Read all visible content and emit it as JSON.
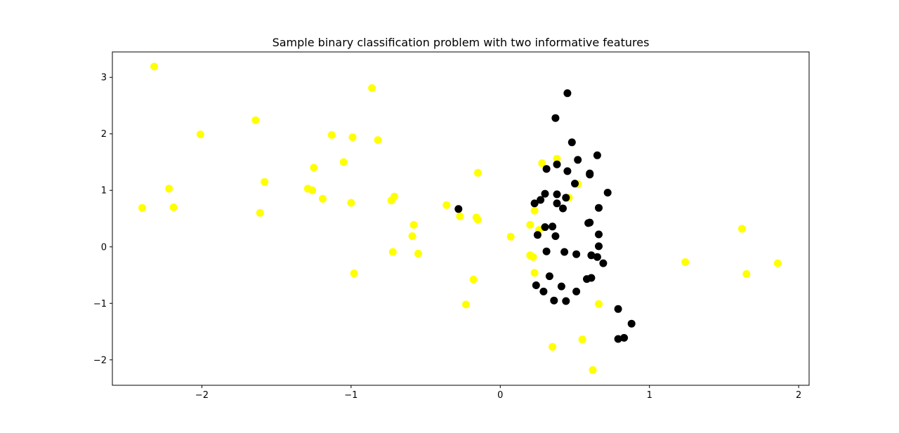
{
  "chart_data": {
    "type": "scatter",
    "title": "Sample binary classification problem with two informative features",
    "xlabel": "",
    "ylabel": "",
    "xlim": [
      -2.6,
      2.07
    ],
    "ylim": [
      -2.45,
      3.45
    ],
    "xticks": [
      -2,
      -1,
      0,
      1,
      2
    ],
    "yticks": [
      -2,
      -1,
      0,
      1,
      2,
      3
    ],
    "xtick_labels": [
      "−2",
      "−1",
      "0",
      "1",
      "2"
    ],
    "ytick_labels": [
      "−2",
      "−1",
      "0",
      "1",
      "2",
      "3"
    ],
    "grid": false,
    "legend": "none",
    "series": [
      {
        "color": "#ffff00",
        "points": [
          [
            -2.32,
            3.19
          ],
          [
            -2.4,
            0.69
          ],
          [
            -2.22,
            1.03
          ],
          [
            -2.19,
            0.7
          ],
          [
            -2.01,
            1.99
          ],
          [
            -1.64,
            2.24
          ],
          [
            -1.61,
            0.6
          ],
          [
            -1.58,
            1.15
          ],
          [
            -1.29,
            1.03
          ],
          [
            -1.26,
            1.0
          ],
          [
            -1.25,
            1.4
          ],
          [
            -1.19,
            0.85
          ],
          [
            -1.13,
            1.98
          ],
          [
            -1.05,
            1.5
          ],
          [
            -1.0,
            0.78
          ],
          [
            -0.99,
            1.94
          ],
          [
            -0.98,
            -0.47
          ],
          [
            -0.86,
            2.81
          ],
          [
            -0.82,
            1.89
          ],
          [
            -0.73,
            0.82
          ],
          [
            -0.71,
            0.89
          ],
          [
            -0.72,
            -0.09
          ],
          [
            -0.58,
            0.39
          ],
          [
            -0.59,
            0.19
          ],
          [
            -0.55,
            -0.12
          ],
          [
            -0.36,
            0.74
          ],
          [
            -0.27,
            0.54
          ],
          [
            -0.23,
            -1.02
          ],
          [
            -0.18,
            -0.58
          ],
          [
            -0.16,
            0.52
          ],
          [
            -0.15,
            0.48
          ],
          [
            -0.15,
            1.31
          ],
          [
            0.07,
            0.18
          ],
          [
            0.2,
            0.39
          ],
          [
            0.2,
            -0.15
          ],
          [
            0.22,
            -0.18
          ],
          [
            0.23,
            -0.46
          ],
          [
            0.23,
            0.64
          ],
          [
            0.26,
            0.3
          ],
          [
            0.28,
            1.48
          ],
          [
            0.35,
            -1.77
          ],
          [
            0.38,
            1.56
          ],
          [
            0.46,
            0.87
          ],
          [
            0.52,
            1.11
          ],
          [
            0.55,
            -1.64
          ],
          [
            0.62,
            -2.18
          ],
          [
            0.66,
            -1.01
          ],
          [
            1.24,
            -0.27
          ],
          [
            1.62,
            0.32
          ],
          [
            1.65,
            -0.48
          ],
          [
            1.86,
            -0.29
          ]
        ]
      },
      {
        "color": "#000000",
        "points": [
          [
            -0.28,
            0.67
          ],
          [
            0.23,
            0.77
          ],
          [
            0.25,
            0.21
          ],
          [
            0.24,
            -0.68
          ],
          [
            0.27,
            0.83
          ],
          [
            0.29,
            -0.79
          ],
          [
            0.3,
            0.35
          ],
          [
            0.3,
            0.94
          ],
          [
            0.31,
            1.38
          ],
          [
            0.31,
            -0.08
          ],
          [
            0.33,
            -0.52
          ],
          [
            0.35,
            0.36
          ],
          [
            0.36,
            -0.95
          ],
          [
            0.37,
            2.28
          ],
          [
            0.37,
            0.19
          ],
          [
            0.38,
            1.46
          ],
          [
            0.38,
            0.93
          ],
          [
            0.38,
            0.77
          ],
          [
            0.41,
            -0.7
          ],
          [
            0.42,
            0.68
          ],
          [
            0.43,
            -0.09
          ],
          [
            0.44,
            -0.96
          ],
          [
            0.44,
            0.87
          ],
          [
            0.45,
            1.34
          ],
          [
            0.45,
            2.72
          ],
          [
            0.48,
            1.85
          ],
          [
            0.5,
            1.12
          ],
          [
            0.51,
            -0.13
          ],
          [
            0.51,
            -0.79
          ],
          [
            0.52,
            1.54
          ],
          [
            0.58,
            -0.57
          ],
          [
            0.59,
            0.42
          ],
          [
            0.6,
            0.43
          ],
          [
            0.6,
            1.28
          ],
          [
            0.6,
            1.3
          ],
          [
            0.61,
            -0.15
          ],
          [
            0.61,
            -0.55
          ],
          [
            0.65,
            -0.18
          ],
          [
            0.65,
            1.62
          ],
          [
            0.66,
            0.01
          ],
          [
            0.66,
            0.22
          ],
          [
            0.66,
            0.69
          ],
          [
            0.69,
            -0.29
          ],
          [
            0.72,
            0.96
          ],
          [
            0.79,
            -1.1
          ],
          [
            0.79,
            -1.63
          ],
          [
            0.83,
            -1.61
          ],
          [
            0.88,
            -1.36
          ]
        ]
      }
    ]
  }
}
